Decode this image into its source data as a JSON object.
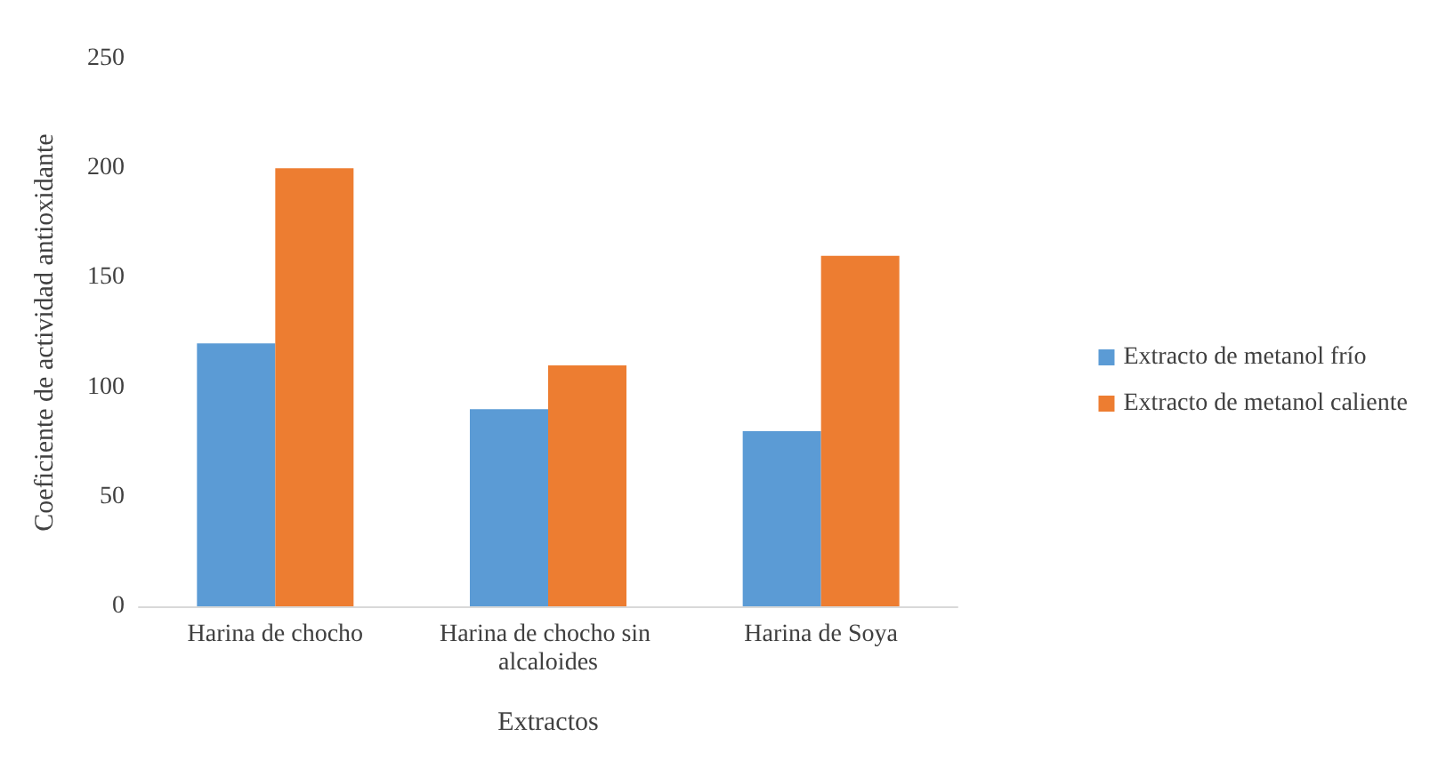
{
  "chart_data": {
    "type": "bar",
    "xlabel": "Extractos",
    "ylabel": "Coeficiente de actividad antioxidante",
    "categories": [
      "Harina de chocho",
      "Harina de chocho sin alcaloides",
      "Harina de Soya"
    ],
    "series": [
      {
        "name": "Extracto de metanol frío",
        "color": "#5b9bd5",
        "values": [
          120,
          90,
          80
        ]
      },
      {
        "name": "Extracto de metanol caliente",
        "color": "#ed7d31",
        "values": [
          200,
          110,
          160
        ]
      }
    ],
    "ylim": [
      0,
      250
    ],
    "yticks": [
      0,
      50,
      100,
      150,
      200,
      250
    ],
    "grid": false,
    "legend": "right"
  }
}
